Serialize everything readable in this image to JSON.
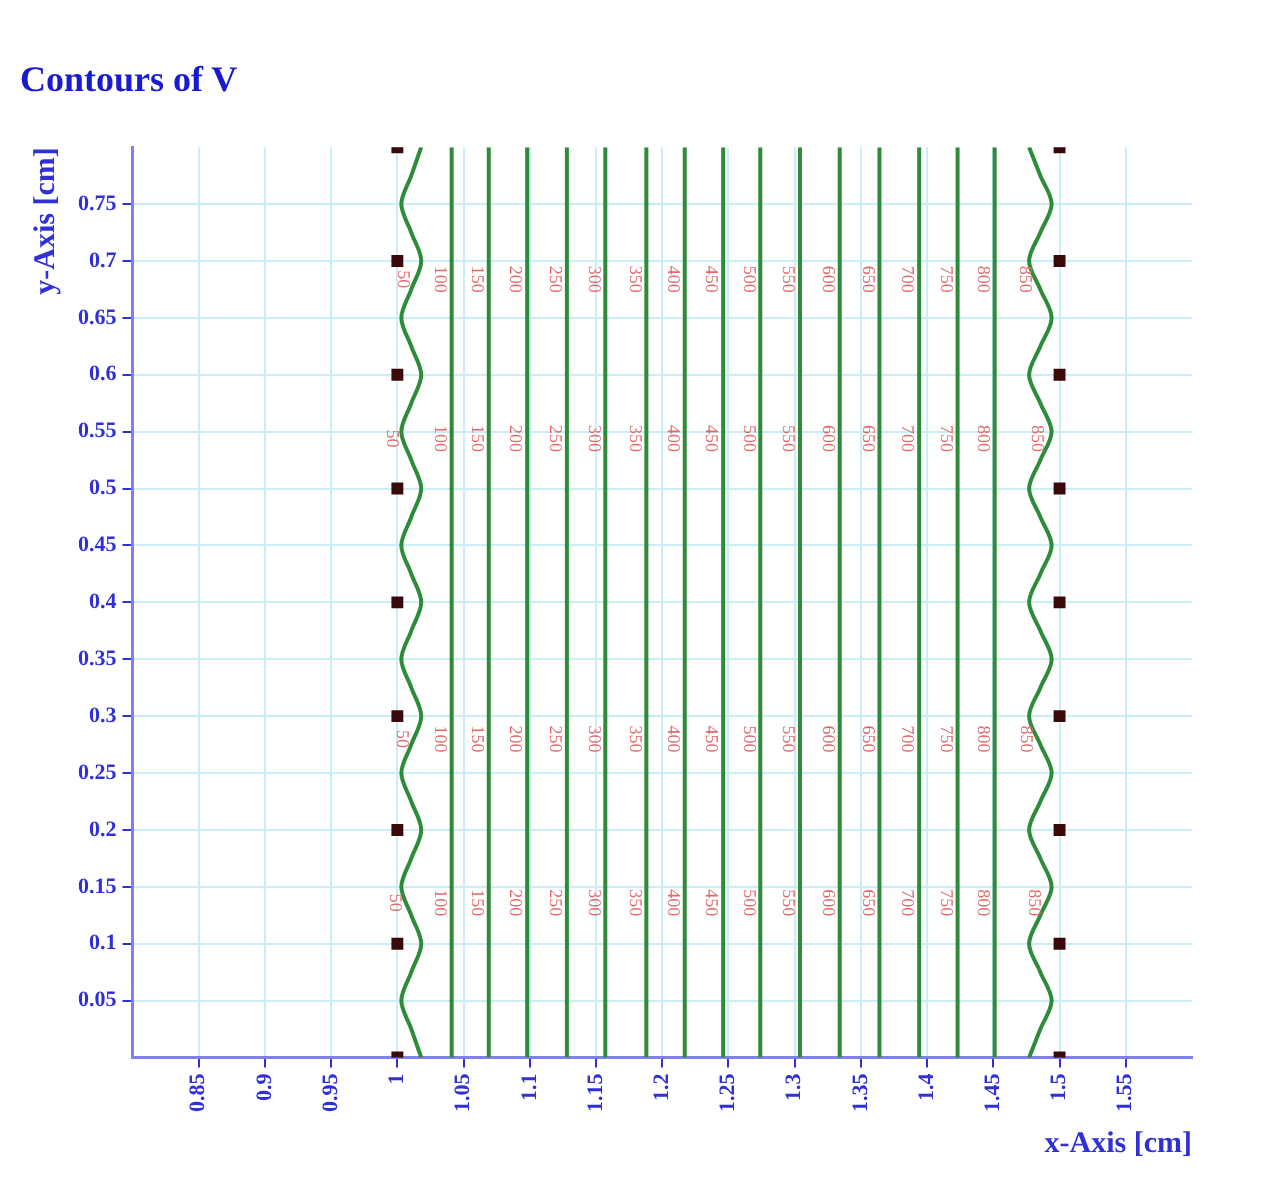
{
  "chart_data": {
    "type": "line",
    "title": "Contours of V",
    "xlabel": "x-Axis [cm]",
    "ylabel": "y-Axis [cm]",
    "xlim": [
      0.8,
      1.6
    ],
    "xticks": [
      0.85,
      0.9,
      0.95,
      1,
      1.05,
      1.1,
      1.15,
      1.2,
      1.25,
      1.3,
      1.35,
      1.4,
      1.45,
      1.5,
      1.55
    ],
    "ylim": [
      0,
      0.8
    ],
    "yticks": [
      0.05,
      0.1,
      0.15,
      0.2,
      0.25,
      0.3,
      0.35,
      0.4,
      0.45,
      0.5,
      0.55,
      0.6,
      0.65,
      0.7,
      0.75
    ],
    "grid": true,
    "legend": false,
    "line_style": "solid",
    "series": [
      {
        "name": "50",
        "color": "#2e8b3a",
        "x": [
          1.018,
          1.0105,
          1.003,
          1.0105,
          1.018,
          1.0105,
          1.003,
          1.0105,
          1.018,
          1.0105,
          1.003,
          1.0105,
          1.018,
          1.0105,
          1.003,
          1.0105,
          1.018,
          1.0105,
          1.003,
          1.0105,
          1.018,
          1.0105,
          1.003,
          1.0105,
          1.018,
          1.0105,
          1.003,
          1.0105,
          1.018,
          1.0105,
          1.003,
          1.0105,
          1.018
        ],
        "values": [
          0,
          0.025,
          0.05,
          0.075,
          0.1,
          0.125,
          0.15,
          0.175,
          0.2,
          0.225,
          0.25,
          0.275,
          0.3,
          0.325,
          0.35,
          0.375,
          0.4,
          0.425,
          0.45,
          0.475,
          0.5,
          0.525,
          0.55,
          0.575,
          0.6,
          0.625,
          0.65,
          0.675,
          0.7,
          0.725,
          0.75,
          0.775,
          0.8
        ]
      },
      {
        "name": "100",
        "color": "#2e8b3a",
        "x": [
          1.041,
          1.041
        ],
        "values": [
          0,
          0.8
        ]
      },
      {
        "name": "150",
        "color": "#2e8b3a",
        "x": [
          1.069,
          1.069
        ],
        "values": [
          0,
          0.8
        ]
      },
      {
        "name": "200",
        "color": "#2e8b3a",
        "x": [
          1.098,
          1.098
        ],
        "values": [
          0,
          0.8
        ]
      },
      {
        "name": "250",
        "color": "#2e8b3a",
        "x": [
          1.128,
          1.128
        ],
        "values": [
          0,
          0.8
        ]
      },
      {
        "name": "300",
        "color": "#2e8b3a",
        "x": [
          1.157,
          1.157
        ],
        "values": [
          0,
          0.8
        ]
      },
      {
        "name": "350",
        "color": "#2e8b3a",
        "x": [
          1.188,
          1.188
        ],
        "values": [
          0,
          0.8
        ]
      },
      {
        "name": "400",
        "color": "#2e8b3a",
        "x": [
          1.217,
          1.217
        ],
        "values": [
          0,
          0.8
        ]
      },
      {
        "name": "450",
        "color": "#2e8b3a",
        "x": [
          1.246,
          1.246
        ],
        "values": [
          0,
          0.8
        ]
      },
      {
        "name": "500",
        "color": "#2e8b3a",
        "x": [
          1.274,
          1.274
        ],
        "values": [
          0,
          0.8
        ]
      },
      {
        "name": "550",
        "color": "#2e8b3a",
        "x": [
          1.304,
          1.304
        ],
        "values": [
          0,
          0.8
        ]
      },
      {
        "name": "600",
        "color": "#2e8b3a",
        "x": [
          1.334,
          1.334
        ],
        "values": [
          0,
          0.8
        ]
      },
      {
        "name": "650",
        "color": "#2e8b3a",
        "x": [
          1.364,
          1.364
        ],
        "values": [
          0,
          0.8
        ]
      },
      {
        "name": "700",
        "color": "#2e8b3a",
        "x": [
          1.394,
          1.394
        ],
        "values": [
          0,
          0.8
        ]
      },
      {
        "name": "750",
        "color": "#2e8b3a",
        "x": [
          1.423,
          1.423
        ],
        "values": [
          0,
          0.8
        ]
      },
      {
        "name": "800",
        "color": "#2e8b3a",
        "x": [
          1.451,
          1.451
        ],
        "values": [
          0,
          0.8
        ]
      },
      {
        "name": "850",
        "color": "#2e8b3a",
        "x": [
          1.477,
          1.4855,
          1.494,
          1.4855,
          1.477,
          1.4855,
          1.494,
          1.4855,
          1.477,
          1.4855,
          1.494,
          1.4855,
          1.477,
          1.4855,
          1.494,
          1.4855,
          1.477,
          1.4855,
          1.494,
          1.4855,
          1.477,
          1.4855,
          1.494,
          1.4855,
          1.477,
          1.4855,
          1.494,
          1.4855,
          1.477,
          1.4855,
          1.494,
          1.4855,
          1.477
        ],
        "values": [
          0,
          0.025,
          0.05,
          0.075,
          0.1,
          0.125,
          0.15,
          0.175,
          0.2,
          0.225,
          0.25,
          0.275,
          0.3,
          0.325,
          0.35,
          0.375,
          0.4,
          0.425,
          0.45,
          0.475,
          0.5,
          0.525,
          0.55,
          0.575,
          0.6,
          0.625,
          0.65,
          0.675,
          0.7,
          0.725,
          0.75,
          0.775,
          0.8
        ]
      },
      {
        "type": "scatter",
        "marker": "square",
        "color": "#3a0a0a",
        "x": [
          1,
          1,
          1,
          1,
          1,
          1,
          1,
          1,
          1
        ],
        "values": [
          0,
          0.1,
          0.2,
          0.3,
          0.4,
          0.5,
          0.6,
          0.7,
          0.8
        ]
      },
      {
        "type": "scatter",
        "marker": "square",
        "color": "#3a0a0a",
        "x": [
          1.5,
          1.5,
          1.5,
          1.5,
          1.5,
          1.5,
          1.5,
          1.5,
          1.5
        ],
        "values": [
          0,
          0.1,
          0.2,
          0.3,
          0.4,
          0.5,
          0.6,
          0.7,
          0.8
        ]
      }
    ]
  }
}
